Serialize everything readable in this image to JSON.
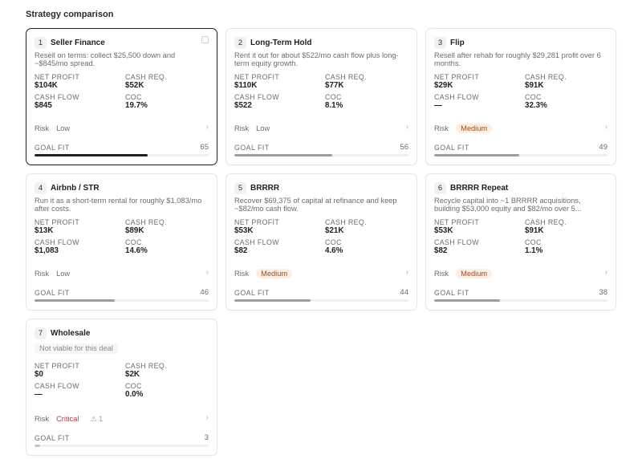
{
  "section_title": "Strategy comparison",
  "labels": {
    "net_profit": "NET PROFIT",
    "cash_req": "CASH REQ.",
    "cash_flow": "CASH FLOW",
    "coc": "COC",
    "risk": "Risk",
    "goal_fit": "GOAL FIT"
  },
  "colors": {
    "selected_border": "#1f1f23",
    "medium_badge_bg": "#fdeee3",
    "medium_badge_text": "#9a4f1c",
    "critical_text": "#c0334b"
  },
  "strategies": [
    {
      "rank": "1",
      "name": "Seller Finance",
      "desc": "Resell on terms: collect $25,500 down and ~$845/mo spread.",
      "net_profit": "$104K",
      "cash_req": "$52K",
      "cash_flow": "$845",
      "coc": "19.7%",
      "risk": "Low",
      "risk_level": "low",
      "goal_fit": "65",
      "fit_pct": 65,
      "selected": true,
      "icon": "doc-icon"
    },
    {
      "rank": "2",
      "name": "Long-Term Hold",
      "desc": "Rent it out for about $522/mo cash flow plus long-term equity growth.",
      "net_profit": "$110K",
      "cash_req": "$77K",
      "cash_flow": "$522",
      "coc": "8.1%",
      "risk": "Low",
      "risk_level": "low",
      "goal_fit": "56",
      "fit_pct": 56
    },
    {
      "rank": "3",
      "name": "Flip",
      "desc": "Resell after rehab for roughly $29,281 profit over 6 months.",
      "net_profit": "$29K",
      "cash_req": "$91K",
      "cash_flow": "—",
      "coc": "32.3%",
      "risk": "Medium",
      "risk_level": "medium",
      "goal_fit": "49",
      "fit_pct": 49
    },
    {
      "rank": "4",
      "name": "Airbnb / STR",
      "desc": "Run it as a short-term rental for roughly $1,083/mo after costs.",
      "net_profit": "$13K",
      "cash_req": "$89K",
      "cash_flow": "$1,083",
      "coc": "14.6%",
      "risk": "Low",
      "risk_level": "low",
      "goal_fit": "46",
      "fit_pct": 46
    },
    {
      "rank": "5",
      "name": "BRRRR",
      "desc": "Recover $69,375 of capital at refinance and keep ~$82/mo cash flow.",
      "net_profit": "$53K",
      "cash_req": "$21K",
      "cash_flow": "$82",
      "coc": "4.6%",
      "risk": "Medium",
      "risk_level": "medium",
      "goal_fit": "44",
      "fit_pct": 44
    },
    {
      "rank": "6",
      "name": "BRRRR Repeat",
      "desc": "Recycle capital into ~1 BRRRR acquisitions, building $53,000 equity and $82/mo over 5...",
      "net_profit": "$53K",
      "cash_req": "$91K",
      "cash_flow": "$82",
      "coc": "1.1%",
      "risk": "Medium",
      "risk_level": "medium",
      "goal_fit": "38",
      "fit_pct": 38
    },
    {
      "rank": "7",
      "name": "Wholesale",
      "viable_note": "Not viable for this deal",
      "net_profit": "$0",
      "cash_req": "$2K",
      "cash_flow": "—",
      "coc": "0.0%",
      "risk": "Critical",
      "risk_level": "critical",
      "warning_count": "⚠ 1",
      "goal_fit": "3",
      "fit_pct": 3,
      "dim": true
    }
  ]
}
